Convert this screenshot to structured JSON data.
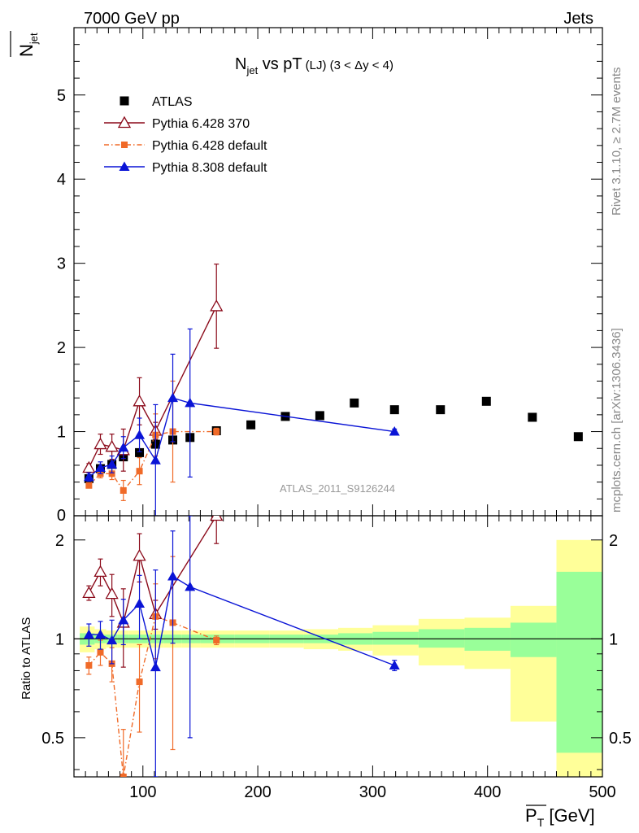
{
  "header": {
    "energy_label": "7000 GeV pp",
    "process_label": "Jets",
    "title_main": "N",
    "title_sub": "jet",
    "title_rest": " vs pT",
    "title_small": "(LJ) (3 < Δy < 4)"
  },
  "side": {
    "rivet_label": "Rivet 3.1.10, ≥ 2.7M events",
    "mcplots_label": "mcplots.cern.ch [arXiv:1306.3436]"
  },
  "watermark": "ATLAS_2011_S9126244",
  "axes": {
    "y_top_label_main": "N",
    "y_top_label_sub": "jet",
    "y_bottom_label": "Ratio to ATLAS",
    "x_label_main": "P",
    "x_label_sub": "T",
    "x_label_unit": " [GeV]"
  },
  "chart_data": [
    {
      "type": "scatter",
      "panel": "main",
      "xlim": [
        40,
        500
      ],
      "ylim": [
        0,
        5.8
      ],
      "x_ticks": [
        100,
        200,
        300,
        400,
        500
      ],
      "y_ticks": [
        1,
        2,
        3,
        4,
        5
      ],
      "y_tick_labels": [
        "1",
        "2",
        "3",
        "4",
        "5"
      ],
      "bottom_tick_label": "0",
      "legend_position": "top-left",
      "series": [
        {
          "name": "ATLAS",
          "color": "#000000",
          "marker": "square",
          "points": [
            {
              "x": 53,
              "y": 0.44
            },
            {
              "x": 63,
              "y": 0.56
            },
            {
              "x": 73,
              "y": 0.61
            },
            {
              "x": 83,
              "y": 0.7
            },
            {
              "x": 97,
              "y": 0.75
            },
            {
              "x": 111,
              "y": 0.85
            },
            {
              "x": 126,
              "y": 0.9
            },
            {
              "x": 141,
              "y": 0.93
            },
            {
              "x": 164,
              "y": 1.01
            },
            {
              "x": 194,
              "y": 1.08
            },
            {
              "x": 224,
              "y": 1.18
            },
            {
              "x": 254,
              "y": 1.19
            },
            {
              "x": 284,
              "y": 1.34
            },
            {
              "x": 319,
              "y": 1.26
            },
            {
              "x": 359,
              "y": 1.26
            },
            {
              "x": 399,
              "y": 1.36
            },
            {
              "x": 439,
              "y": 1.17
            },
            {
              "x": 479,
              "y": 0.94
            }
          ]
        },
        {
          "name": "Pythia 6.428 370",
          "color": "#8b0a1a",
          "marker": "open-triangle",
          "points": [
            {
              "x": 53,
              "y": 0.57,
              "err": 0.05
            },
            {
              "x": 63,
              "y": 0.85,
              "err": 0.12
            },
            {
              "x": 73,
              "y": 0.82,
              "err": 0.15
            },
            {
              "x": 83,
              "y": 0.78,
              "err": 0.25
            },
            {
              "x": 97,
              "y": 1.36,
              "err": 0.28
            },
            {
              "x": 111,
              "y": 1.01,
              "err": 0.1
            },
            {
              "x": 164,
              "y": 2.49,
              "err": 0.5
            }
          ]
        },
        {
          "name": "Pythia 6.428 default",
          "color": "#f06a28",
          "marker": "square-small",
          "points": [
            {
              "x": 53,
              "y": 0.36,
              "err": 0.03
            },
            {
              "x": 63,
              "y": 0.5,
              "err": 0.05
            },
            {
              "x": 73,
              "y": 0.5,
              "err": 0.07
            },
            {
              "x": 83,
              "y": 0.3,
              "err": 0.12
            },
            {
              "x": 97,
              "y": 0.53,
              "err": 0.16
            },
            {
              "x": 111,
              "y": 0.96,
              "err": 0.25
            },
            {
              "x": 126,
              "y": 1.0,
              "err": 0.6
            },
            {
              "x": 164,
              "y": 1.0,
              "err": 0.04
            }
          ]
        },
        {
          "name": "Pythia 8.308 default",
          "color": "#0a14d6",
          "marker": "triangle",
          "points": [
            {
              "x": 53,
              "y": 0.46,
              "err": 0.05
            },
            {
              "x": 63,
              "y": 0.57,
              "err": 0.07
            },
            {
              "x": 73,
              "y": 0.61,
              "err": 0.1
            },
            {
              "x": 83,
              "y": 0.81,
              "err": 0.13
            },
            {
              "x": 97,
              "y": 0.96,
              "err": 0.2
            },
            {
              "x": 111,
              "y": 0.66,
              "err": 0.66
            },
            {
              "x": 126,
              "y": 1.4,
              "err": 0.52
            },
            {
              "x": 141,
              "y": 1.34,
              "err": 0.88
            },
            {
              "x": 319,
              "y": 1.0,
              "err": 0.03
            }
          ]
        }
      ]
    },
    {
      "type": "line",
      "panel": "ratio",
      "xlim": [
        40,
        500
      ],
      "ylim": [
        0.38,
        2.37
      ],
      "y_scale": "log",
      "reference_line": 1,
      "y_ticks": [
        0.5,
        1,
        2
      ],
      "y_tick_labels": [
        "0.5",
        "1",
        "2"
      ],
      "x_ticks": [
        100,
        200,
        300,
        400,
        500
      ],
      "x_tick_labels": [
        "100",
        "200",
        "300",
        "400",
        "500"
      ],
      "bands": [
        {
          "x0": 45,
          "x1": 58,
          "green": [
            0.96,
            1.04
          ],
          "yellow": [
            0.91,
            1.09
          ]
        },
        {
          "x0": 58,
          "x1": 68,
          "green": [
            0.97,
            1.03
          ],
          "yellow": [
            0.93,
            1.07
          ]
        },
        {
          "x0": 68,
          "x1": 78,
          "green": [
            0.97,
            1.03
          ],
          "yellow": [
            0.94,
            1.06
          ]
        },
        {
          "x0": 78,
          "x1": 88,
          "green": [
            0.97,
            1.03
          ],
          "yellow": [
            0.94,
            1.06
          ]
        },
        {
          "x0": 88,
          "x1": 104,
          "green": [
            0.97,
            1.03
          ],
          "yellow": [
            0.94,
            1.06
          ]
        },
        {
          "x0": 104,
          "x1": 118,
          "green": [
            0.97,
            1.03
          ],
          "yellow": [
            0.94,
            1.06
          ]
        },
        {
          "x0": 118,
          "x1": 134,
          "green": [
            0.97,
            1.03
          ],
          "yellow": [
            0.94,
            1.06
          ]
        },
        {
          "x0": 134,
          "x1": 150,
          "green": [
            0.97,
            1.03
          ],
          "yellow": [
            0.94,
            1.06
          ]
        },
        {
          "x0": 150,
          "x1": 180,
          "green": [
            0.97,
            1.03
          ],
          "yellow": [
            0.94,
            1.06
          ]
        },
        {
          "x0": 180,
          "x1": 210,
          "green": [
            0.97,
            1.03
          ],
          "yellow": [
            0.94,
            1.06
          ]
        },
        {
          "x0": 210,
          "x1": 240,
          "green": [
            0.97,
            1.03
          ],
          "yellow": [
            0.94,
            1.06
          ]
        },
        {
          "x0": 240,
          "x1": 270,
          "green": [
            0.97,
            1.03
          ],
          "yellow": [
            0.93,
            1.07
          ]
        },
        {
          "x0": 270,
          "x1": 300,
          "green": [
            0.96,
            1.04
          ],
          "yellow": [
            0.92,
            1.08
          ]
        },
        {
          "x0": 300,
          "x1": 340,
          "green": [
            0.96,
            1.05
          ],
          "yellow": [
            0.89,
            1.1
          ]
        },
        {
          "x0": 340,
          "x1": 380,
          "green": [
            0.94,
            1.07
          ],
          "yellow": [
            0.83,
            1.15
          ]
        },
        {
          "x0": 380,
          "x1": 420,
          "green": [
            0.92,
            1.08
          ],
          "yellow": [
            0.81,
            1.16
          ]
        },
        {
          "x0": 420,
          "x1": 460,
          "green": [
            0.88,
            1.12
          ],
          "yellow": [
            0.56,
            1.26
          ]
        },
        {
          "x0": 460,
          "x1": 500,
          "green": [
            0.45,
            1.6
          ],
          "yellow": [
            0.37,
            2.0
          ]
        }
      ],
      "series": [
        {
          "name": "Pythia 6.428 370",
          "color": "#8b0a1a",
          "marker": "open-triangle",
          "points": [
            {
              "x": 53,
              "y": 1.38,
              "err": 0.07
            },
            {
              "x": 63,
              "y": 1.6,
              "err": 0.15
            },
            {
              "x": 73,
              "y": 1.37,
              "err": 0.2
            },
            {
              "x": 83,
              "y": 1.12,
              "err": 0.3
            },
            {
              "x": 97,
              "y": 1.79,
              "err": 0.3
            },
            {
              "x": 111,
              "y": 1.19,
              "err": 0.12
            },
            {
              "x": 164,
              "y": 2.45,
              "err": 0.5
            }
          ]
        },
        {
          "name": "Pythia 6.428 default",
          "color": "#f06a28",
          "marker": "square-small",
          "points": [
            {
              "x": 53,
              "y": 0.83,
              "err": 0.05
            },
            {
              "x": 63,
              "y": 0.91,
              "err": 0.08
            },
            {
              "x": 73,
              "y": 0.84,
              "err": 0.1
            },
            {
              "x": 83,
              "y": 0.38,
              "err": 0.15
            },
            {
              "x": 97,
              "y": 0.74,
              "err": 0.22
            },
            {
              "x": 111,
              "y": 1.17,
              "err": 0.3
            },
            {
              "x": 126,
              "y": 1.12,
              "err": 0.66
            },
            {
              "x": 164,
              "y": 0.99,
              "err": 0.03
            }
          ]
        },
        {
          "name": "Pythia 8.308 default",
          "color": "#0a14d6",
          "marker": "triangle",
          "points": [
            {
              "x": 53,
              "y": 1.03,
              "err": 0.08
            },
            {
              "x": 63,
              "y": 1.03,
              "err": 0.1
            },
            {
              "x": 73,
              "y": 0.99,
              "err": 0.15
            },
            {
              "x": 83,
              "y": 1.14,
              "err": 0.18
            },
            {
              "x": 97,
              "y": 1.28,
              "err": 0.28
            },
            {
              "x": 111,
              "y": 0.82,
              "err": 0.8
            },
            {
              "x": 126,
              "y": 1.55,
              "err": 0.58
            },
            {
              "x": 141,
              "y": 1.44,
              "err": 0.94
            },
            {
              "x": 319,
              "y": 0.83,
              "err": 0.03
            }
          ]
        }
      ]
    }
  ]
}
